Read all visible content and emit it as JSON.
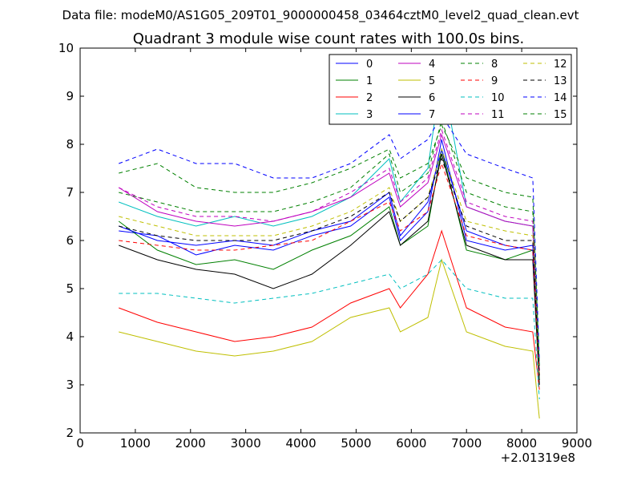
{
  "chart_data": {
    "type": "line",
    "header": "Data file: modeM0/AS1G05_209T01_9000000458_03464cztM0_level2_quad_clean.evt",
    "title": "Quadrant 3 module wise count rates with 100.0s bins.",
    "xlabel": "",
    "ylabel": "",
    "x_offset_label": "+2.01319e8",
    "xlim": [
      0,
      9000
    ],
    "ylim": [
      2,
      10
    ],
    "x_ticks": [
      "0",
      "1000",
      "2000",
      "3000",
      "4000",
      "5000",
      "6000",
      "7000",
      "8000",
      "9000"
    ],
    "y_ticks": [
      "2",
      "3",
      "4",
      "5",
      "6",
      "7",
      "8",
      "9",
      "10"
    ],
    "grid": false,
    "legend_position": "top-right",
    "legend_columns": 4,
    "x": [
      700,
      1400,
      2100,
      2800,
      3500,
      4200,
      4900,
      5600,
      5800,
      6300,
      6550,
      7000,
      7700,
      8200,
      8320
    ],
    "series": [
      {
        "name": "0",
        "color": "#0000ff",
        "dash": false,
        "values": [
          6.2,
          6.1,
          5.7,
          5.9,
          5.8,
          6.1,
          6.3,
          6.9,
          6.0,
          6.6,
          8.1,
          6.0,
          5.8,
          5.9,
          3.2
        ]
      },
      {
        "name": "1",
        "color": "#008000",
        "dash": false,
        "values": [
          6.4,
          5.8,
          5.5,
          5.6,
          5.4,
          5.8,
          6.1,
          6.7,
          5.9,
          6.3,
          7.9,
          5.8,
          5.6,
          5.8,
          3.1
        ]
      },
      {
        "name": "2",
        "color": "#ff0000",
        "dash": false,
        "values": [
          4.6,
          4.3,
          4.1,
          3.9,
          4.0,
          4.2,
          4.7,
          5.0,
          4.6,
          5.3,
          6.2,
          4.6,
          4.2,
          4.1,
          2.9
        ]
      },
      {
        "name": "3",
        "color": "#00bfbf",
        "dash": false,
        "values": [
          6.8,
          6.5,
          6.3,
          6.5,
          6.3,
          6.5,
          6.9,
          7.7,
          6.8,
          7.5,
          9.5,
          6.7,
          6.4,
          6.3,
          3.4
        ]
      },
      {
        "name": "4",
        "color": "#bf00bf",
        "dash": false,
        "values": [
          7.1,
          6.6,
          6.4,
          6.3,
          6.4,
          6.6,
          6.9,
          7.4,
          6.7,
          7.2,
          8.2,
          6.7,
          6.4,
          6.3,
          3.3
        ]
      },
      {
        "name": "5",
        "color": "#bfbf00",
        "dash": false,
        "values": [
          4.1,
          3.9,
          3.7,
          3.6,
          3.7,
          3.9,
          4.4,
          4.6,
          4.1,
          4.4,
          5.6,
          4.1,
          3.8,
          3.7,
          2.3
        ]
      },
      {
        "name": "6",
        "color": "#000000",
        "dash": false,
        "values": [
          5.9,
          5.6,
          5.4,
          5.3,
          5.0,
          5.3,
          5.9,
          6.6,
          5.9,
          6.4,
          7.8,
          5.9,
          5.6,
          5.6,
          3.0
        ]
      },
      {
        "name": "7",
        "color": "#0000ff",
        "dash": false,
        "values": [
          6.3,
          6.0,
          5.9,
          6.0,
          5.9,
          6.2,
          6.4,
          7.0,
          6.1,
          6.8,
          7.9,
          6.2,
          5.9,
          5.8,
          3.3
        ]
      },
      {
        "name": "8",
        "color": "#008000",
        "dash": true,
        "values": [
          7.0,
          6.8,
          6.6,
          6.6,
          6.6,
          6.8,
          7.1,
          7.8,
          7.0,
          7.4,
          8.5,
          7.0,
          6.7,
          6.6,
          3.4
        ]
      },
      {
        "name": "9",
        "color": "#ff0000",
        "dash": true,
        "values": [
          6.0,
          5.9,
          5.8,
          5.8,
          5.9,
          6.0,
          6.4,
          6.8,
          6.2,
          6.6,
          7.6,
          6.1,
          5.9,
          5.8,
          3.2
        ]
      },
      {
        "name": "10",
        "color": "#00bfbf",
        "dash": true,
        "values": [
          4.9,
          4.9,
          4.8,
          4.7,
          4.8,
          4.9,
          5.1,
          5.3,
          5.0,
          5.3,
          5.6,
          5.0,
          4.8,
          4.8,
          2.7
        ]
      },
      {
        "name": "11",
        "color": "#bf00bf",
        "dash": true,
        "values": [
          7.1,
          6.7,
          6.5,
          6.5,
          6.4,
          6.6,
          7.0,
          7.5,
          6.8,
          7.3,
          8.3,
          6.8,
          6.5,
          6.4,
          3.3
        ]
      },
      {
        "name": "12",
        "color": "#bfbf00",
        "dash": true,
        "values": [
          6.5,
          6.3,
          6.1,
          6.1,
          6.1,
          6.3,
          6.6,
          7.1,
          6.4,
          6.9,
          7.9,
          6.4,
          6.2,
          6.1,
          3.2
        ]
      },
      {
        "name": "13",
        "color": "#000000",
        "dash": true,
        "values": [
          6.3,
          6.1,
          6.0,
          6.0,
          6.0,
          6.2,
          6.5,
          7.0,
          6.4,
          6.9,
          7.7,
          6.3,
          6.0,
          6.0,
          3.1
        ]
      },
      {
        "name": "14",
        "color": "#0000ff",
        "dash": true,
        "values": [
          7.6,
          7.9,
          7.6,
          7.6,
          7.3,
          7.3,
          7.6,
          8.2,
          7.7,
          8.1,
          8.6,
          7.8,
          7.5,
          7.3,
          3.5
        ]
      },
      {
        "name": "15",
        "color": "#008000",
        "dash": true,
        "values": [
          7.4,
          7.6,
          7.1,
          7.0,
          7.0,
          7.2,
          7.5,
          7.9,
          7.3,
          7.6,
          8.4,
          7.3,
          7.0,
          6.9,
          3.4
        ]
      }
    ]
  }
}
